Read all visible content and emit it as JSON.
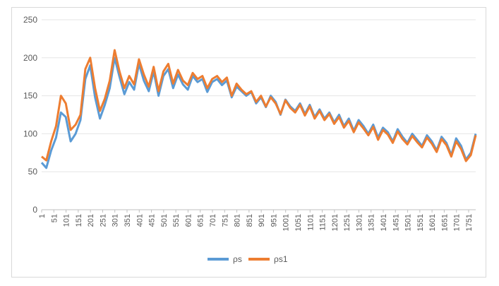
{
  "chart_data": {
    "type": "line",
    "title": "",
    "xlabel": "",
    "ylabel": "",
    "xlim": [
      1,
      1780
    ],
    "ylim": [
      0,
      250
    ],
    "y_ticks": [
      0,
      50,
      100,
      150,
      200,
      250
    ],
    "x_ticks": [
      1,
      51,
      101,
      151,
      201,
      251,
      301,
      351,
      401,
      451,
      501,
      551,
      601,
      651,
      701,
      751,
      801,
      851,
      901,
      951,
      1001,
      1051,
      1101,
      1151,
      1201,
      1251,
      1301,
      1351,
      1401,
      1451,
      1501,
      1551,
      1601,
      1651,
      1701,
      1751
    ],
    "grid": "horizontal",
    "legend": "bottom",
    "series": [
      {
        "name": "ρs",
        "color": "#5b9bd5",
        "x": [
          1,
          20,
          40,
          60,
          80,
          100,
          120,
          140,
          160,
          180,
          200,
          220,
          240,
          260,
          280,
          300,
          320,
          340,
          360,
          380,
          400,
          420,
          440,
          460,
          480,
          500,
          520,
          540,
          560,
          580,
          600,
          620,
          640,
          660,
          680,
          700,
          720,
          740,
          760,
          780,
          800,
          820,
          840,
          860,
          880,
          900,
          920,
          940,
          960,
          980,
          1000,
          1020,
          1040,
          1060,
          1080,
          1100,
          1120,
          1140,
          1160,
          1180,
          1200,
          1220,
          1240,
          1260,
          1280,
          1300,
          1320,
          1340,
          1360,
          1380,
          1400,
          1420,
          1440,
          1460,
          1480,
          1500,
          1520,
          1540,
          1560,
          1580,
          1600,
          1620,
          1640,
          1660,
          1680,
          1700,
          1720,
          1740,
          1760,
          1780
        ],
        "values": [
          62,
          55,
          78,
          95,
          128,
          122,
          90,
          100,
          118,
          172,
          190,
          148,
          120,
          138,
          160,
          200,
          175,
          152,
          168,
          158,
          192,
          170,
          156,
          182,
          150,
          176,
          185,
          160,
          178,
          165,
          158,
          176,
          168,
          172,
          155,
          168,
          172,
          164,
          170,
          148,
          162,
          156,
          150,
          155,
          140,
          148,
          135,
          150,
          142,
          125,
          145,
          136,
          130,
          140,
          126,
          138,
          122,
          132,
          120,
          128,
          115,
          125,
          110,
          120,
          104,
          118,
          110,
          100,
          112,
          95,
          108,
          102,
          90,
          106,
          96,
          88,
          100,
          92,
          84,
          98,
          90,
          78,
          96,
          88,
          72,
          94,
          84,
          66,
          75,
          100
        ]
      },
      {
        "name": "ρs1",
        "color": "#ed7d31",
        "x": [
          1,
          20,
          40,
          60,
          80,
          100,
          120,
          140,
          160,
          180,
          200,
          220,
          240,
          260,
          280,
          300,
          320,
          340,
          360,
          380,
          400,
          420,
          440,
          460,
          480,
          500,
          520,
          540,
          560,
          580,
          600,
          620,
          640,
          660,
          680,
          700,
          720,
          740,
          760,
          780,
          800,
          820,
          840,
          860,
          880,
          900,
          920,
          940,
          960,
          980,
          1000,
          1020,
          1040,
          1060,
          1080,
          1100,
          1120,
          1140,
          1160,
          1180,
          1200,
          1220,
          1240,
          1260,
          1280,
          1300,
          1320,
          1340,
          1360,
          1380,
          1400,
          1420,
          1440,
          1460,
          1480,
          1500,
          1520,
          1540,
          1560,
          1580,
          1600,
          1620,
          1640,
          1660,
          1680,
          1700,
          1720,
          1740,
          1760,
          1780
        ],
        "values": [
          70,
          65,
          90,
          110,
          150,
          140,
          105,
          112,
          125,
          185,
          200,
          160,
          130,
          146,
          170,
          210,
          182,
          160,
          176,
          165,
          198,
          178,
          162,
          188,
          156,
          182,
          192,
          166,
          184,
          170,
          164,
          180,
          172,
          176,
          160,
          172,
          176,
          168,
          174,
          150,
          166,
          158,
          152,
          156,
          142,
          150,
          136,
          148,
          140,
          126,
          144,
          134,
          128,
          138,
          124,
          136,
          120,
          130,
          118,
          126,
          113,
          122,
          108,
          117,
          102,
          115,
          107,
          98,
          109,
          92,
          105,
          99,
          88,
          103,
          93,
          86,
          97,
          89,
          82,
          95,
          87,
          76,
          93,
          85,
          70,
          90,
          80,
          64,
          72,
          98
        ]
      }
    ]
  }
}
